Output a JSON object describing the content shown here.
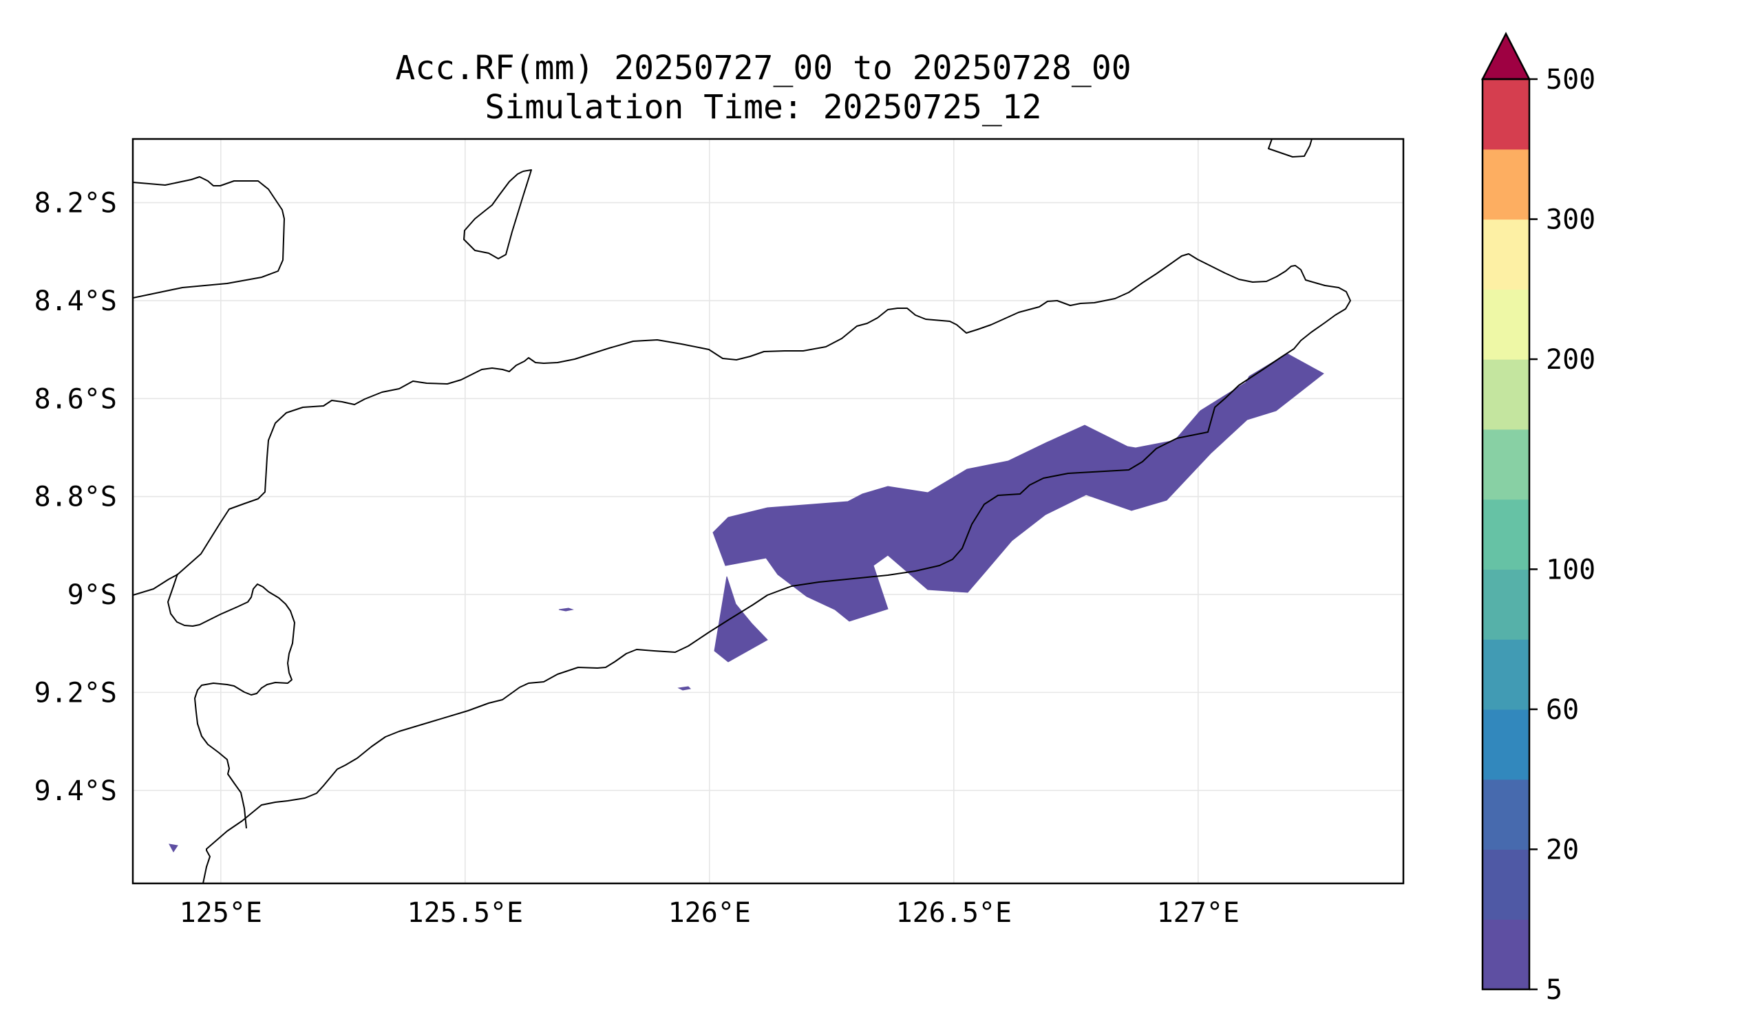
{
  "title_line1": "Acc.RF(mm) 20250727_00 to 20250728_00",
  "title_line2": "Simulation Time: 20250725_12",
  "map": {
    "lon_range": [
      124.82,
      127.42
    ],
    "lat_range": [
      -9.59,
      -8.07
    ],
    "lon_ticks": [
      {
        "value": 125.0,
        "label": "125°E"
      },
      {
        "value": 125.5,
        "label": "125.5°E"
      },
      {
        "value": 126.0,
        "label": "126°E"
      },
      {
        "value": 126.5,
        "label": "126.5°E"
      },
      {
        "value": 127.0,
        "label": "127°E"
      }
    ],
    "lat_ticks": [
      {
        "value": -8.2,
        "label": "8.2°S"
      },
      {
        "value": -8.4,
        "label": "8.4°S"
      },
      {
        "value": -8.6,
        "label": "8.6°S"
      },
      {
        "value": -8.8,
        "label": "8.8°S"
      },
      {
        "value": -9.0,
        "label": "9°S"
      },
      {
        "value": -9.2,
        "label": "9.2°S"
      },
      {
        "value": -9.4,
        "label": "9.4°S"
      }
    ],
    "grid": true
  },
  "colorbar": {
    "levels": [
      5,
      10,
      20,
      40,
      60,
      80,
      100,
      125,
      150,
      200,
      250,
      300,
      350,
      500
    ],
    "colors": [
      "#5e4fa2",
      "#4f59a5",
      "#476aae",
      "#3288bd",
      "#419bb4",
      "#56b1a9",
      "#66c2a5",
      "#88d0a4",
      "#c4e59f",
      "#eef8a6",
      "#fdf0a4",
      "#fdae61",
      "#d53e4f"
    ],
    "extend_color": "#9e0142",
    "extend": "max",
    "tick_labels": [
      {
        "value": 5,
        "label": "5"
      },
      {
        "value": 20,
        "label": "20"
      },
      {
        "value": 60,
        "label": "60"
      },
      {
        "value": 100,
        "label": "100"
      },
      {
        "value": 200,
        "label": "200"
      },
      {
        "value": 300,
        "label": "300"
      },
      {
        "value": 500,
        "label": "500"
      }
    ]
  }
}
